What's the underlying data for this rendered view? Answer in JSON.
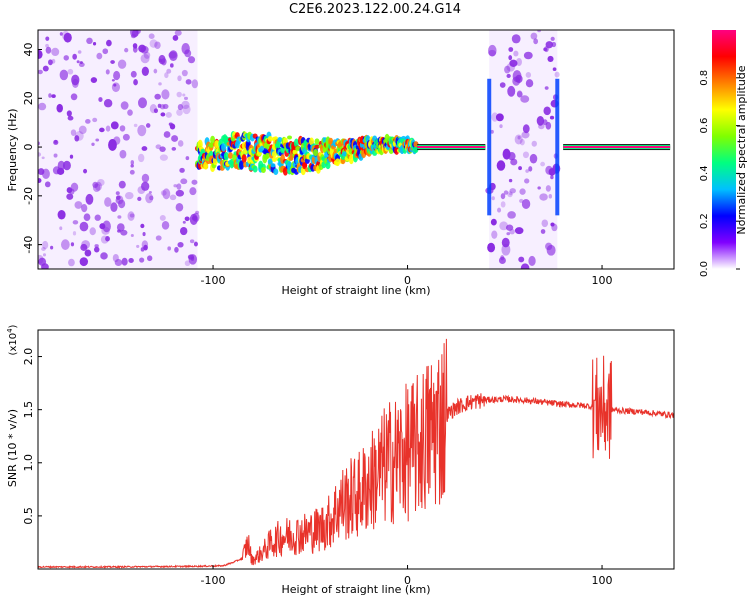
{
  "title": "C2E6.2023.122.00.24.G14",
  "colors": {
    "snr_line": "#e8322a",
    "spectro_noise": "#8a2be2",
    "frame": "#000000"
  },
  "chart_data": [
    {
      "type": "heatmap",
      "xlabel": "Height of straight line (km)",
      "ylabel": "Frequency (Hz)",
      "xlim": [
        -190,
        137
      ],
      "ylim": [
        -50,
        48
      ],
      "xticks": [
        -100,
        0,
        100
      ],
      "xtick_labels": [
        "-100",
        "0",
        "100"
      ],
      "yticks": [
        -40,
        -20,
        0,
        20,
        40
      ],
      "ytick_labels": [
        "-40",
        "-20",
        "0",
        "20",
        "40"
      ],
      "grid": false,
      "colorbar": {
        "label": "Normalized spectral amplitude",
        "range": [
          0.0,
          1.0
        ],
        "ticks": [
          0.0,
          0.2,
          0.4,
          0.6,
          0.8
        ],
        "tick_labels": [
          "0.0",
          "0.2",
          "0.4",
          "0.6",
          "0.8"
        ],
        "colormap": [
          "#ffffff",
          "#8000ff",
          "#0000ff",
          "#00c0ff",
          "#00ff80",
          "#80ff00",
          "#ffff00",
          "#ff8000",
          "#ff0000",
          "#ff0080"
        ]
      },
      "regions": [
        {
          "name": "noise",
          "x": [
            -190,
            -108
          ],
          "freq": [
            -50,
            48
          ]
        },
        {
          "name": "signal_broadening",
          "x": [
            -108,
            5
          ],
          "freq_center_start": -4,
          "freq_center_end": 0,
          "spread": 5
        },
        {
          "name": "line",
          "x": [
            5,
            40
          ],
          "freq": 0
        },
        {
          "name": "noise",
          "x": [
            42,
            77
          ],
          "freq": [
            -50,
            48
          ]
        },
        {
          "name": "line",
          "x": [
            80,
            135
          ],
          "freq": 0
        }
      ]
    },
    {
      "type": "line",
      "xlabel": "Height of straight line (km)",
      "ylabel": "SNR (10 * v/v)",
      "y_multiplier_label": "(x10",
      "y_multiplier_exponent": "4",
      "xlim": [
        -190,
        137
      ],
      "ylim": [
        0,
        22500
      ],
      "xticks": [
        -100,
        0,
        100
      ],
      "xtick_labels": [
        "-100",
        "0",
        "100"
      ],
      "yticks": [
        5000,
        10000,
        15000,
        20000
      ],
      "ytick_labels": [
        "0.5",
        "1.0",
        "1.5",
        "2.0"
      ],
      "grid": false,
      "series": [
        {
          "x": [
            -190,
            -150,
            -110,
            -95,
            -90,
            -85,
            -82,
            -80,
            -75,
            -70,
            -65,
            -60,
            -55,
            -50,
            -45,
            -40,
            -35,
            -30,
            -25,
            -20,
            -15,
            -10,
            -5,
            0,
            5,
            10,
            15,
            20,
            25,
            30,
            35,
            40,
            50,
            60,
            70,
            80,
            90,
            95,
            98,
            100,
            102,
            104,
            110,
            120,
            130,
            137
          ],
          "values": [
            200,
            200,
            250,
            300,
            600,
            1000,
            2500,
            800,
            1500,
            2500,
            3000,
            3200,
            3300,
            3500,
            3800,
            4500,
            6000,
            6500,
            7000,
            8000,
            9000,
            10000,
            10500,
            11000,
            11500,
            12500,
            13500,
            14500,
            15200,
            15600,
            15800,
            15900,
            16000,
            15900,
            15700,
            15500,
            15400,
            15300,
            15000,
            15200,
            14900,
            15000,
            14900,
            14800,
            14600,
            14500
          ]
        }
      ]
    }
  ]
}
